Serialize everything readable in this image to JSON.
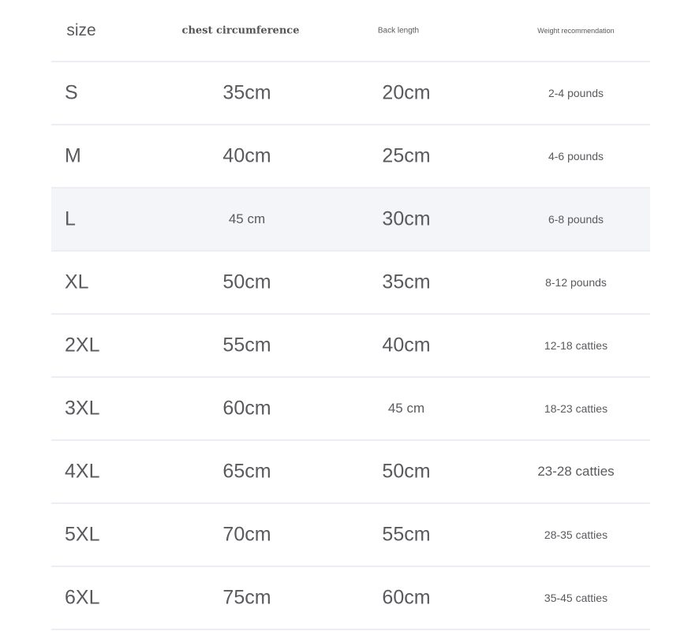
{
  "header": {
    "size": "size",
    "chest": "chest circumference",
    "back": "Back length",
    "weight": "Weight recommendation"
  },
  "rows": [
    {
      "size": "S",
      "chest": "35cm",
      "back": "20cm",
      "weight": "2-4 pounds"
    },
    {
      "size": "M",
      "chest": "40cm",
      "back": "25cm",
      "weight": "4-6 pounds"
    },
    {
      "size": "L",
      "chest": "45 cm",
      "back": "30cm",
      "weight": "6-8 pounds"
    },
    {
      "size": "XL",
      "chest": "50cm",
      "back": "35cm",
      "weight": "8-12 pounds"
    },
    {
      "size": "2XL",
      "chest": "55cm",
      "back": "40cm",
      "weight": "12-18 catties"
    },
    {
      "size": "3XL",
      "chest": "60cm",
      "back": "45 cm",
      "weight": "18-23 catties"
    },
    {
      "size": "4XL",
      "chest": "65cm",
      "back": "50cm",
      "weight": "23-28 catties"
    },
    {
      "size": "5XL",
      "chest": "70cm",
      "back": "55cm",
      "weight": "28-35 catties"
    },
    {
      "size": "6XL",
      "chest": "75cm",
      "back": "60cm",
      "weight": "35-45 catties"
    }
  ],
  "colors": {
    "highlight_row": "#f3f5f9",
    "divider": "#eceef3",
    "text": "#5a5a5e"
  }
}
